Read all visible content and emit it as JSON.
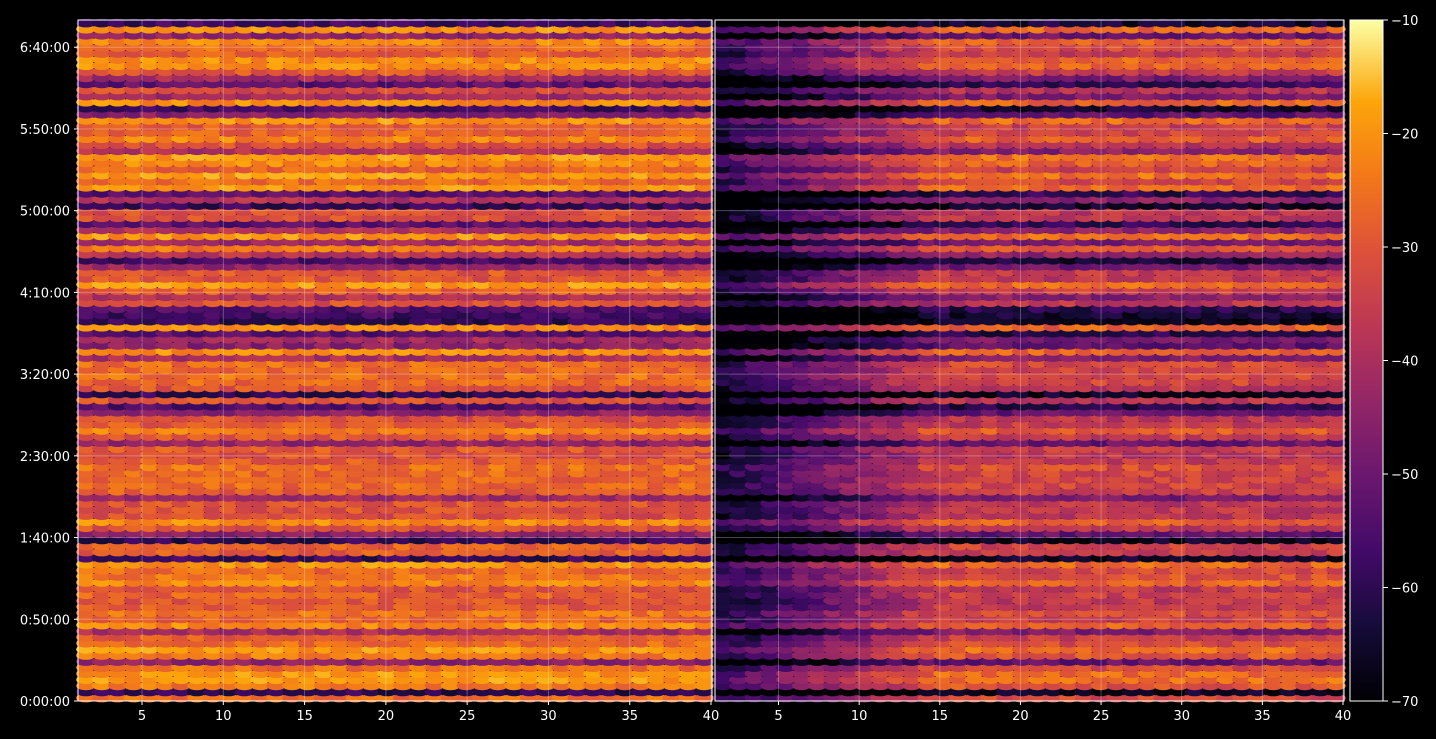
{
  "chart_data": {
    "type": "heatmap",
    "colormap": "inferno",
    "background": "#000000",
    "panels": [
      {
        "x_ticks": [
          5,
          10,
          15,
          20,
          25,
          30,
          35,
          40
        ],
        "xlim": [
          1,
          40
        ],
        "label_first_tick_at_right_edge": "40",
        "pattern": "bright"
      },
      {
        "x_ticks": [
          5,
          10,
          15,
          20,
          25,
          30,
          35,
          40
        ],
        "xlim": [
          1,
          40
        ],
        "pattern": "dark-left"
      }
    ],
    "x_tick_labels": [
      "5",
      "10",
      "15",
      "20",
      "25",
      "30",
      "35",
      "40",
      "5",
      "10",
      "15",
      "20",
      "25",
      "30",
      "35",
      "40"
    ],
    "y_tick_labels": [
      "0:00:00",
      "0:50:00",
      "1:40:00",
      "2:30:00",
      "3:20:00",
      "4:10:00",
      "5:00:00",
      "5:50:00",
      "6:40:00"
    ],
    "y_tick_seconds": [
      0,
      3000,
      6000,
      9000,
      12000,
      15000,
      18000,
      21000,
      24000
    ],
    "ylim_seconds": [
      0,
      25000
    ],
    "colorbar": {
      "min": -70,
      "max": -10,
      "ticks": [
        -10,
        -20,
        -30,
        -40,
        -50,
        -60,
        -70
      ],
      "tick_labels": [
        "−10",
        "−20",
        "−30",
        "−40",
        "−50",
        "−60",
        "−70"
      ]
    },
    "grid": true,
    "legend": "none"
  }
}
